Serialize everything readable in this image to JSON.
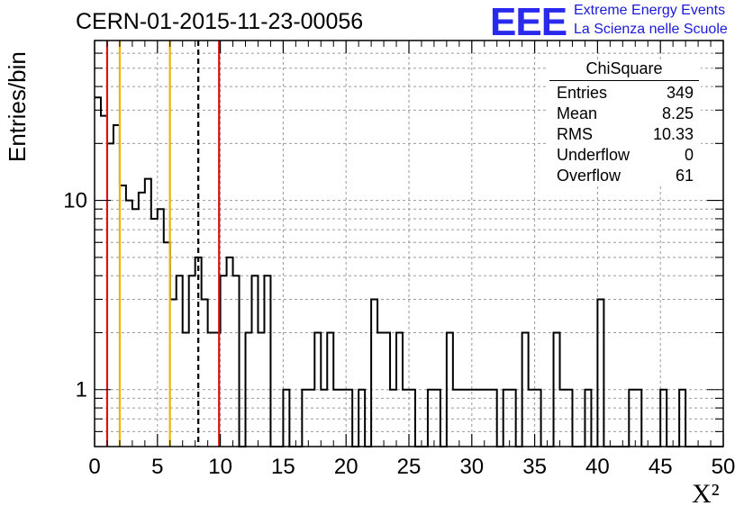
{
  "chart_data": {
    "type": "histogram",
    "title": "CERN-01-2015-11-23-00056",
    "xlabel": "X²",
    "ylabel": "Entries/bin",
    "xlim": [
      0,
      50
    ],
    "ylim": [
      0.5,
      70
    ],
    "y_scale": "log",
    "grid": true,
    "x_ticks": [
      "0",
      "5",
      "10",
      "15",
      "20",
      "25",
      "30",
      "35",
      "40",
      "45",
      "50"
    ],
    "y_ticks": [
      "1",
      "10"
    ],
    "bin_width": 0.5,
    "bin_start": 0,
    "values": [
      35,
      28,
      20,
      25,
      12,
      10,
      9,
      11,
      13,
      8,
      9,
      6,
      3,
      4,
      2,
      4,
      5,
      3,
      2,
      2,
      4,
      5,
      4,
      0,
      2,
      4,
      2,
      4,
      0,
      0,
      1,
      0,
      0,
      1,
      1,
      2,
      1,
      2,
      1,
      1,
      1,
      0,
      1,
      0,
      3,
      2,
      2,
      1,
      2,
      1,
      1,
      0,
      0,
      1,
      1,
      0,
      2,
      1,
      1,
      1,
      1,
      1,
      1,
      1,
      0,
      1,
      1,
      0,
      2,
      1,
      1,
      0,
      0,
      2,
      1,
      1,
      0,
      0,
      1,
      0,
      3,
      0,
      0,
      0,
      0,
      1,
      1,
      0,
      0,
      0,
      1,
      0,
      0,
      1,
      0,
      0,
      0,
      0,
      0,
      0
    ],
    "reference_lines": [
      {
        "x": 1.0,
        "color": "#dd1111",
        "style": "solid"
      },
      {
        "x": 9.9,
        "color": "#dd1111",
        "style": "solid"
      },
      {
        "x": 2.0,
        "color": "#f0b400",
        "style": "solid"
      },
      {
        "x": 5.99,
        "color": "#f0b400",
        "style": "solid"
      },
      {
        "x": 8.25,
        "color": "#000000",
        "style": "dashed"
      }
    ]
  },
  "logo": {
    "mark": "EEE",
    "line1": "Extreme Energy Events",
    "line2": "La Scienza nelle Scuole",
    "color": "#2a2aee"
  },
  "stats": {
    "name": "ChiSquare",
    "rows": [
      {
        "label": "Entries",
        "value": "349"
      },
      {
        "label": "Mean",
        "value": "8.25"
      },
      {
        "label": "RMS",
        "value": "10.33"
      },
      {
        "label": "Underflow",
        "value": "0"
      },
      {
        "label": "Overflow",
        "value": "61"
      }
    ]
  }
}
